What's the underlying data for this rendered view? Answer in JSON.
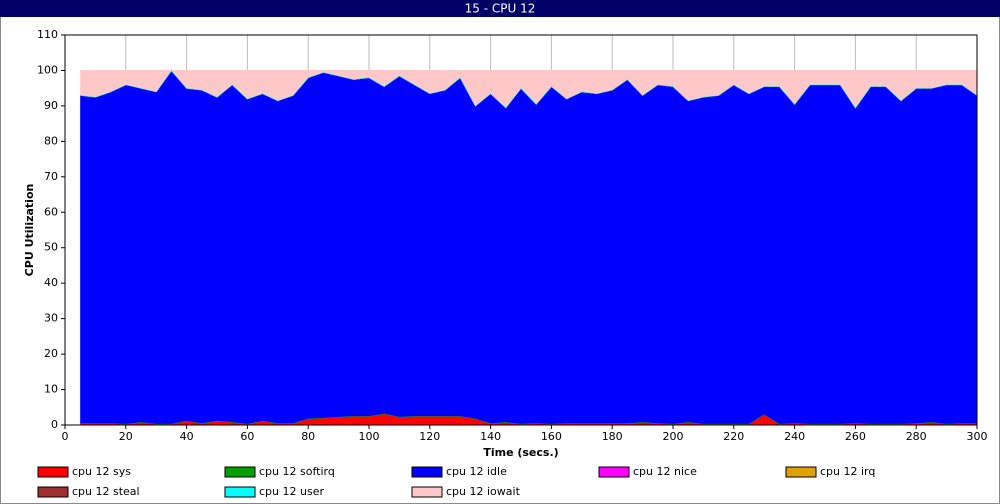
{
  "chart_data": {
    "type": "stacked-area",
    "title": "15 - CPU 12",
    "x_label": "Time (secs.)",
    "y_label": "CPU Utilization",
    "x": [
      5,
      10,
      15,
      20,
      25,
      30,
      35,
      40,
      45,
      50,
      55,
      60,
      65,
      70,
      75,
      80,
      85,
      90,
      95,
      100,
      105,
      110,
      115,
      120,
      125,
      130,
      135,
      140,
      145,
      150,
      155,
      160,
      165,
      170,
      175,
      180,
      185,
      190,
      195,
      200,
      205,
      210,
      215,
      220,
      225,
      230,
      235,
      240,
      245,
      250,
      255,
      260,
      265,
      270,
      275,
      280,
      285,
      290,
      295,
      300
    ],
    "xlim": [
      0,
      300
    ],
    "xticks": [
      0,
      20,
      40,
      60,
      80,
      100,
      120,
      140,
      160,
      180,
      200,
      220,
      240,
      260,
      280,
      300
    ],
    "ylim": [
      0,
      110
    ],
    "yticks": [
      0,
      10,
      20,
      30,
      40,
      50,
      60,
      70,
      80,
      90,
      100,
      110
    ],
    "grid": true,
    "series": [
      {
        "name": "cpu 12 sys",
        "color": "#ff0000",
        "values": [
          0.5,
          0.5,
          0.5,
          0.3,
          0.8,
          0.3,
          0.3,
          1.2,
          0.5,
          1.2,
          0.8,
          0.3,
          1.2,
          0.5,
          0.5,
          1.8,
          2,
          2.3,
          2.5,
          2.5,
          3.2,
          2.3,
          2.5,
          2.5,
          2.5,
          2.5,
          1.8,
          0.5,
          0.8,
          0.3,
          0.5,
          0.3,
          0.5,
          0.5,
          0.5,
          0.5,
          0.5,
          0.8,
          0.5,
          0.3,
          0.8,
          0.3,
          0.3,
          0.3,
          0.3,
          3,
          0.3,
          0.5,
          0.3,
          0.3,
          0.3,
          0.5,
          0.3,
          0.3,
          0.3,
          0.5,
          0.8,
          0.3,
          0.5,
          0.5
        ]
      },
      {
        "name": "cpu 12 softirq",
        "color": "#00a000",
        "values": [
          0,
          0,
          0,
          0,
          0,
          0,
          0,
          0,
          0,
          0,
          0,
          0,
          0,
          0,
          0,
          0,
          0,
          0,
          0,
          0,
          0,
          0,
          0,
          0,
          0,
          0,
          0,
          0,
          0,
          0,
          0,
          0,
          0,
          0,
          0,
          0,
          0,
          0,
          0,
          0,
          0,
          0,
          0,
          0,
          0,
          0,
          0,
          0,
          0,
          0,
          0,
          0,
          0,
          0,
          0,
          0,
          0,
          0,
          0,
          0
        ]
      },
      {
        "name": "cpu 12 idle",
        "color": "#0000ff",
        "values": [
          92.5,
          92,
          93.5,
          95.7,
          94.2,
          93.7,
          99.7,
          93.8,
          94,
          91.3,
          95.2,
          91.7,
          92.3,
          91,
          92.5,
          96.2,
          97.5,
          96.2,
          95,
          95.5,
          92.3,
          96.2,
          93.5,
          91,
          92,
          95.5,
          88.2,
          93,
          88.7,
          94.7,
          90,
          95.2,
          91.5,
          93.5,
          93,
          94,
          97,
          92.2,
          95.5,
          95.2,
          90.7,
          92.2,
          92.7,
          95.7,
          93.2,
          92.5,
          95.2,
          90,
          95.7,
          95.7,
          95.7,
          89,
          95.2,
          95.2,
          91.2,
          94.5,
          94.2,
          95.7,
          95.5,
          92.5
        ]
      },
      {
        "name": "cpu 12 nice",
        "color": "#ff00ff",
        "values": [
          0,
          0,
          0,
          0,
          0,
          0,
          0,
          0,
          0,
          0,
          0,
          0,
          0,
          0,
          0,
          0,
          0,
          0,
          0,
          0,
          0,
          0,
          0,
          0,
          0,
          0,
          0,
          0,
          0,
          0,
          0,
          0,
          0,
          0,
          0,
          0,
          0,
          0,
          0,
          0,
          0,
          0,
          0,
          0,
          0,
          0,
          0,
          0,
          0,
          0,
          0,
          0,
          0,
          0,
          0,
          0,
          0,
          0,
          0,
          0
        ]
      },
      {
        "name": "cpu 12 irq",
        "color": "#e0a000",
        "values": [
          0,
          0,
          0,
          0,
          0,
          0,
          0,
          0,
          0,
          0,
          0,
          0,
          0,
          0,
          0,
          0,
          0,
          0,
          0,
          0,
          0,
          0,
          0,
          0,
          0,
          0,
          0,
          0,
          0,
          0,
          0,
          0,
          0,
          0,
          0,
          0,
          0,
          0,
          0,
          0,
          0,
          0,
          0,
          0,
          0,
          0,
          0,
          0,
          0,
          0,
          0,
          0,
          0,
          0,
          0,
          0,
          0,
          0,
          0,
          0
        ]
      },
      {
        "name": "cpu 12 steal",
        "color": "#a03030",
        "values": [
          0,
          0,
          0,
          0,
          0,
          0,
          0,
          0,
          0,
          0,
          0,
          0,
          0,
          0,
          0,
          0,
          0,
          0,
          0,
          0,
          0,
          0,
          0,
          0,
          0,
          0,
          0,
          0,
          0,
          0,
          0,
          0,
          0,
          0,
          0,
          0,
          0,
          0,
          0,
          0,
          0,
          0,
          0,
          0,
          0,
          0,
          0,
          0,
          0,
          0,
          0,
          0,
          0,
          0,
          0,
          0,
          0,
          0,
          0,
          0
        ]
      },
      {
        "name": "cpu 12 user",
        "color": "#00ffff",
        "values": [
          0,
          0,
          0,
          0,
          0,
          0,
          0,
          0,
          0,
          0,
          0,
          0,
          0,
          0,
          0,
          0,
          0,
          0,
          0,
          0,
          0,
          0,
          0,
          0,
          0,
          0,
          0,
          0,
          0,
          0,
          0,
          0,
          0,
          0,
          0,
          0,
          0,
          0,
          0,
          0,
          0,
          0,
          0,
          0,
          0,
          0,
          0,
          0,
          0,
          0,
          0,
          0,
          0,
          0,
          0,
          0,
          0,
          0,
          0,
          0
        ]
      },
      {
        "name": "cpu 12 iowait",
        "color": "#ffc8c8",
        "values": [
          7,
          7.5,
          6,
          4,
          5,
          6,
          0,
          5,
          5.5,
          7.5,
          4,
          8,
          6.5,
          8.5,
          7,
          2,
          0.5,
          1.5,
          2.5,
          2,
          4.5,
          1.5,
          4,
          6.5,
          5.5,
          2,
          10,
          6.5,
          10.5,
          5,
          9.5,
          4.5,
          8,
          6,
          6.5,
          5.5,
          2.5,
          7,
          4,
          4.5,
          8.5,
          7.5,
          7,
          4,
          6.5,
          4.5,
          4.5,
          9.5,
          4,
          4,
          4,
          10.5,
          4.5,
          4.5,
          8.5,
          5,
          5,
          4,
          4,
          7
        ]
      }
    ]
  }
}
